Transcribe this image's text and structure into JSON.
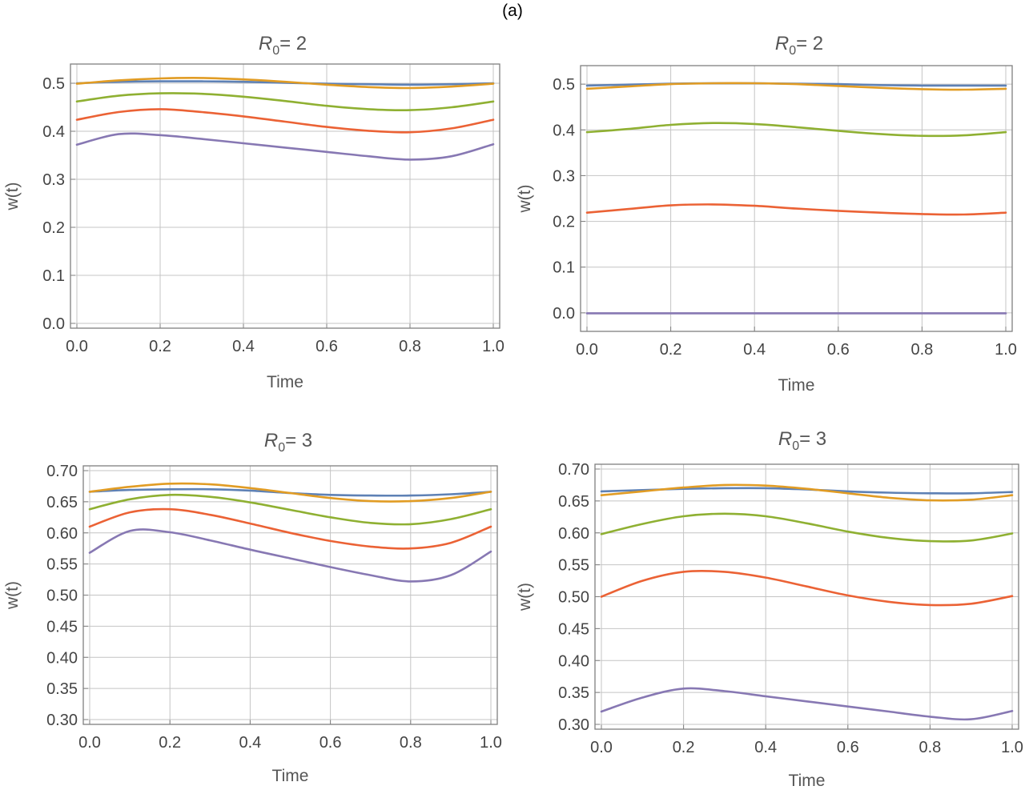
{
  "figure_label": "(a)",
  "colors": {
    "blue": "#5e81b5",
    "orange": "#e19c24",
    "green": "#8fb032",
    "red": "#eb6235",
    "purple": "#8778b3"
  },
  "chart_data": [
    {
      "type": "line",
      "title_main": "R",
      "title_sub": "0",
      "title_rest": "= 2",
      "xlabel": "Time",
      "ylabel": "w(t)",
      "xlim": [
        0,
        1
      ],
      "ylim": [
        0,
        0.53
      ],
      "xticks": [
        "0.0",
        "0.2",
        "0.4",
        "0.6",
        "0.8",
        "1.0"
      ],
      "yticks": [
        "0.0",
        "0.1",
        "0.2",
        "0.3",
        "0.4",
        "0.5"
      ],
      "x": [
        0,
        0.1,
        0.2,
        0.3,
        0.4,
        0.5,
        0.6,
        0.7,
        0.8,
        0.9,
        1.0
      ],
      "series": [
        {
          "color": "blue",
          "values": [
            0.5,
            0.503,
            0.504,
            0.504,
            0.503,
            0.501,
            0.499,
            0.498,
            0.497,
            0.498,
            0.5
          ]
        },
        {
          "color": "orange",
          "values": [
            0.499,
            0.506,
            0.51,
            0.511,
            0.508,
            0.503,
            0.497,
            0.492,
            0.49,
            0.493,
            0.499
          ]
        },
        {
          "color": "green",
          "values": [
            0.462,
            0.474,
            0.479,
            0.478,
            0.472,
            0.463,
            0.453,
            0.446,
            0.444,
            0.45,
            0.462
          ]
        },
        {
          "color": "red",
          "values": [
            0.424,
            0.44,
            0.446,
            0.44,
            0.431,
            0.42,
            0.409,
            0.401,
            0.398,
            0.406,
            0.424
          ]
        },
        {
          "color": "purple",
          "values": [
            0.372,
            0.394,
            0.392,
            0.384,
            0.375,
            0.366,
            0.357,
            0.348,
            0.341,
            0.348,
            0.373
          ]
        }
      ]
    },
    {
      "type": "line",
      "title_main": "R",
      "title_sub": "0",
      "title_rest": "= 2",
      "xlabel": "Time",
      "ylabel": "w(t)",
      "xlim": [
        0,
        1
      ],
      "ylim": [
        -0.03,
        0.53
      ],
      "xticks": [
        "0.0",
        "0.2",
        "0.4",
        "0.6",
        "0.8",
        "1.0"
      ],
      "yticks": [
        "0.0",
        "0.1",
        "0.2",
        "0.3",
        "0.4",
        "0.5"
      ],
      "x": [
        0,
        0.1,
        0.2,
        0.3,
        0.4,
        0.5,
        0.6,
        0.7,
        0.8,
        0.9,
        1.0
      ],
      "series": [
        {
          "color": "blue",
          "values": [
            0.497,
            0.499,
            0.501,
            0.502,
            0.502,
            0.501,
            0.5,
            0.498,
            0.497,
            0.497,
            0.497
          ]
        },
        {
          "color": "orange",
          "values": [
            0.49,
            0.495,
            0.5,
            0.502,
            0.502,
            0.5,
            0.496,
            0.492,
            0.489,
            0.488,
            0.49
          ]
        },
        {
          "color": "green",
          "values": [
            0.395,
            0.402,
            0.411,
            0.415,
            0.413,
            0.406,
            0.398,
            0.391,
            0.387,
            0.388,
            0.395
          ]
        },
        {
          "color": "red",
          "values": [
            0.219,
            0.227,
            0.235,
            0.237,
            0.234,
            0.228,
            0.223,
            0.219,
            0.216,
            0.215,
            0.219
          ]
        },
        {
          "color": "purple",
          "values": [
            -0.001,
            -0.001,
            -0.001,
            -0.001,
            -0.001,
            -0.001,
            -0.001,
            -0.001,
            -0.001,
            -0.001,
            -0.001
          ]
        }
      ]
    },
    {
      "type": "line",
      "title_main": "R",
      "title_sub": "0",
      "title_rest": "= 3",
      "xlabel": "Time",
      "ylabel": "w(t)",
      "xlim": [
        0,
        1
      ],
      "ylim": [
        0.3,
        0.7
      ],
      "xticks": [
        "0.0",
        "0.2",
        "0.4",
        "0.6",
        "0.8",
        "1.0"
      ],
      "yticks": [
        "0.30",
        "0.35",
        "0.40",
        "0.45",
        "0.50",
        "0.55",
        "0.60",
        "0.65",
        "0.70"
      ],
      "x": [
        0,
        0.1,
        0.2,
        0.3,
        0.4,
        0.5,
        0.6,
        0.7,
        0.8,
        0.9,
        1.0
      ],
      "series": [
        {
          "color": "blue",
          "values": [
            0.666,
            0.669,
            0.67,
            0.67,
            0.668,
            0.664,
            0.661,
            0.66,
            0.66,
            0.662,
            0.666
          ]
        },
        {
          "color": "orange",
          "values": [
            0.666,
            0.674,
            0.679,
            0.678,
            0.672,
            0.664,
            0.656,
            0.651,
            0.651,
            0.656,
            0.666
          ]
        },
        {
          "color": "green",
          "values": [
            0.638,
            0.654,
            0.661,
            0.658,
            0.649,
            0.637,
            0.625,
            0.616,
            0.614,
            0.622,
            0.638
          ]
        },
        {
          "color": "red",
          "values": [
            0.61,
            0.633,
            0.638,
            0.629,
            0.615,
            0.6,
            0.587,
            0.578,
            0.575,
            0.584,
            0.61
          ]
        },
        {
          "color": "purple",
          "values": [
            0.568,
            0.603,
            0.601,
            0.588,
            0.573,
            0.559,
            0.545,
            0.532,
            0.522,
            0.532,
            0.57
          ]
        }
      ]
    },
    {
      "type": "line",
      "title_main": "R",
      "title_sub": "0",
      "title_rest": "= 3",
      "xlabel": "Time",
      "ylabel": "w(t)",
      "xlim": [
        0,
        1
      ],
      "ylim": [
        0.3,
        0.7
      ],
      "xticks": [
        "0.0",
        "0.2",
        "0.4",
        "0.6",
        "0.8",
        "1.0"
      ],
      "yticks": [
        "0.30",
        "0.35",
        "0.40",
        "0.45",
        "0.50",
        "0.55",
        "0.60",
        "0.65",
        "0.70"
      ],
      "x": [
        0,
        0.1,
        0.2,
        0.3,
        0.4,
        0.5,
        0.6,
        0.7,
        0.8,
        0.9,
        1.0
      ],
      "series": [
        {
          "color": "blue",
          "values": [
            0.665,
            0.667,
            0.669,
            0.67,
            0.67,
            0.668,
            0.665,
            0.663,
            0.662,
            0.662,
            0.664
          ]
        },
        {
          "color": "orange",
          "values": [
            0.659,
            0.665,
            0.671,
            0.675,
            0.674,
            0.669,
            0.662,
            0.655,
            0.651,
            0.652,
            0.659
          ]
        },
        {
          "color": "green",
          "values": [
            0.598,
            0.614,
            0.626,
            0.63,
            0.626,
            0.615,
            0.602,
            0.592,
            0.587,
            0.588,
            0.599
          ]
        },
        {
          "color": "red",
          "values": [
            0.5,
            0.525,
            0.539,
            0.539,
            0.53,
            0.516,
            0.502,
            0.492,
            0.487,
            0.489,
            0.501
          ]
        },
        {
          "color": "purple",
          "values": [
            0.32,
            0.342,
            0.356,
            0.352,
            0.344,
            0.336,
            0.328,
            0.32,
            0.312,
            0.308,
            0.321
          ]
        }
      ]
    }
  ]
}
